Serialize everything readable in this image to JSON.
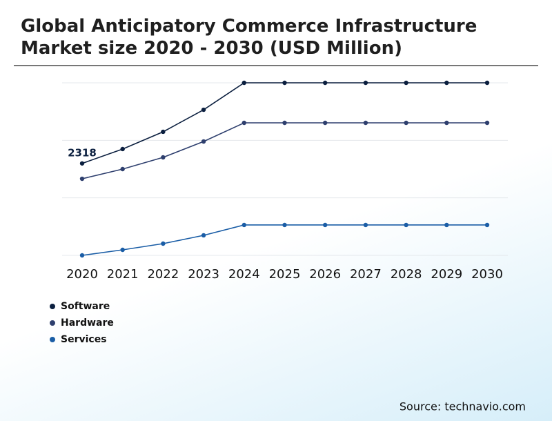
{
  "chart_data": {
    "type": "line",
    "title": "Global Anticipatory Commerce Infrastructure Market size 2020 - 2030 (USD Million)",
    "categories": [
      "2020",
      "2021",
      "2022",
      "2023",
      "2024",
      "2025",
      "2026",
      "2027",
      "2028",
      "2029",
      "2030"
    ],
    "series": [
      {
        "name": "Software",
        "color": "#0b1f3f",
        "values": [
          2318,
          2680,
          3115,
          3671,
          4350,
          4350,
          4350,
          4350,
          4350,
          4350,
          4350
        ]
      },
      {
        "name": "Hardware",
        "color": "#2e3f6e",
        "values": [
          1931,
          2175,
          2471,
          2871,
          3341,
          3341,
          3341,
          3341,
          3341,
          3341,
          3341
        ]
      },
      {
        "name": "Services",
        "color": "#1a5da6",
        "values": [
          0,
          139,
          296,
          505,
          766,
          766,
          766,
          766,
          766,
          766,
          766
        ]
      }
    ],
    "ylim": [
      0,
      4350
    ],
    "yticks": [
      0,
      1450,
      2900,
      4350
    ],
    "grid": true,
    "source": "Source: technavio.com"
  }
}
